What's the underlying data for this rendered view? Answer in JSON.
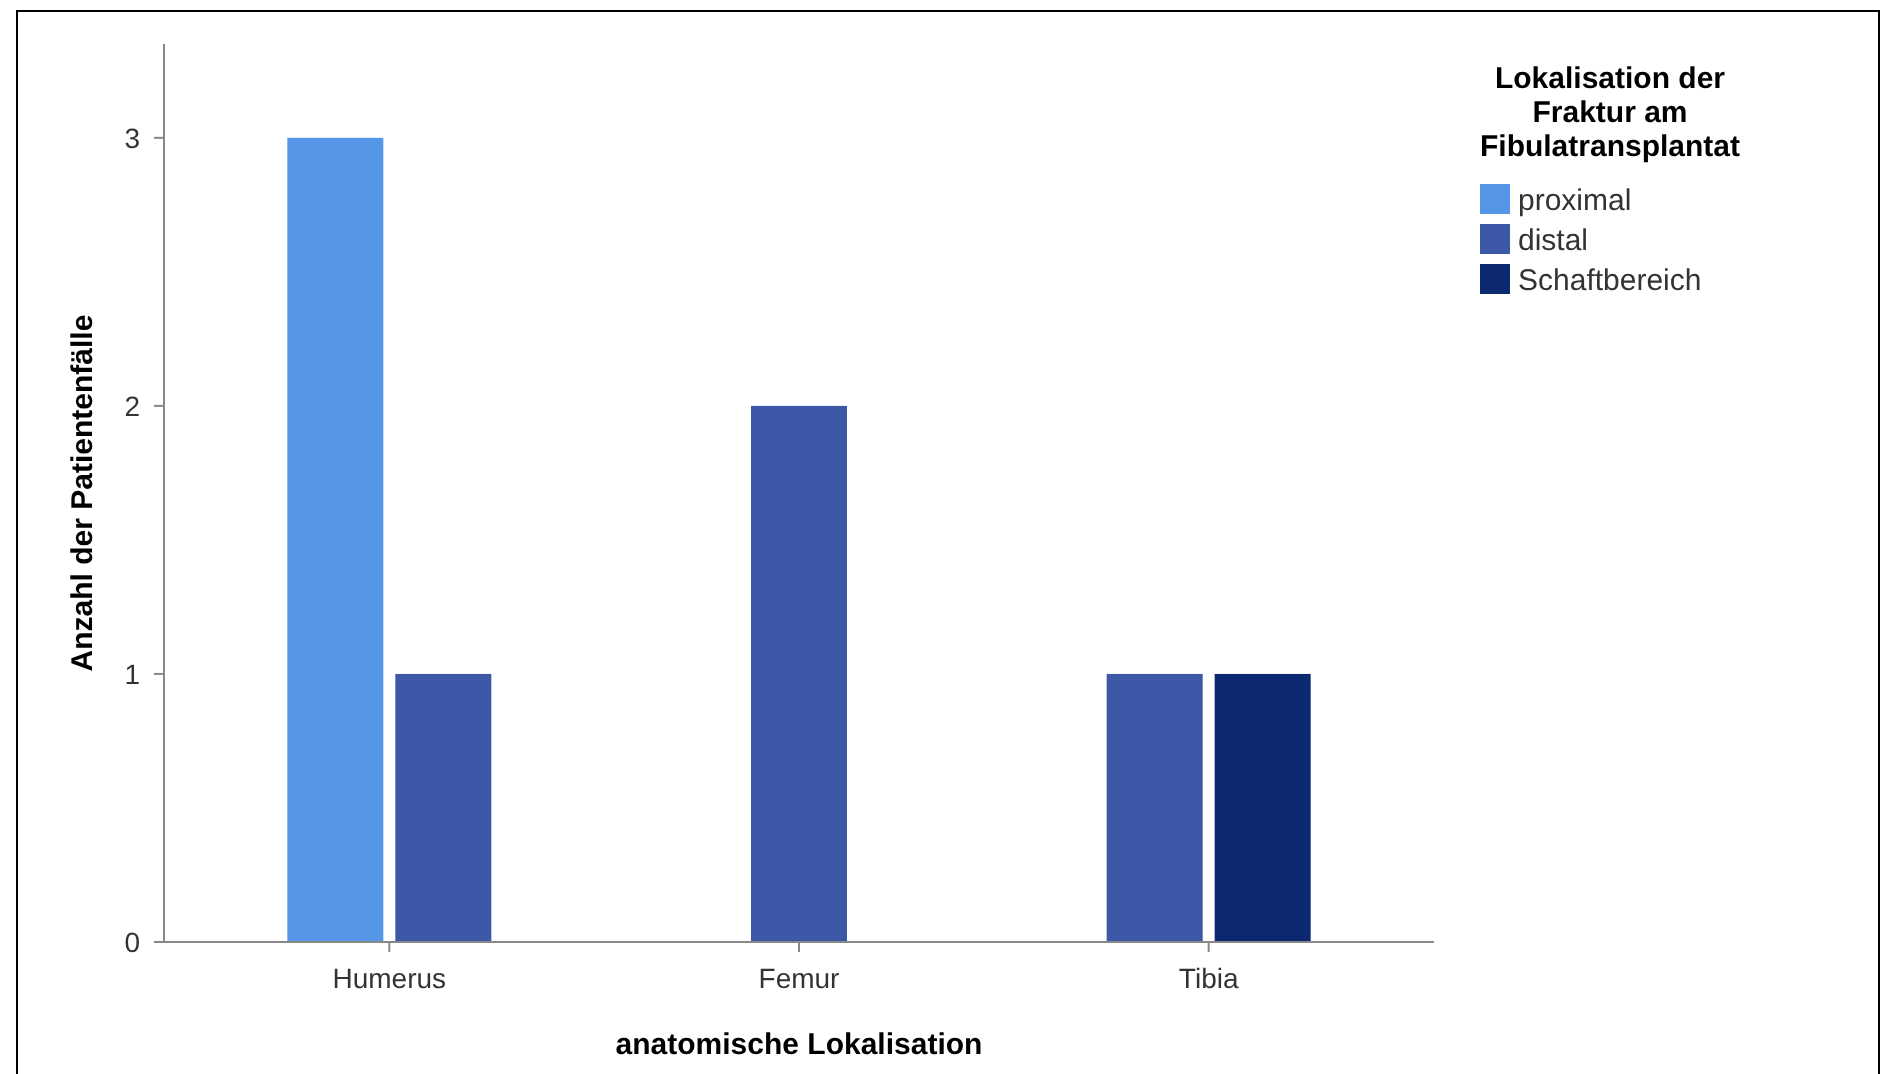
{
  "chart_data": {
    "type": "bar",
    "xlabel": "anatomische Lokalisation",
    "ylabel": "Anzahl der Patientenfälle",
    "legend_title": "Lokalisation der Fraktur am Fibulatransplantat",
    "categories": [
      "Humerus",
      "Femur",
      "Tibia"
    ],
    "series": [
      {
        "name": "proximal",
        "color": "#5596e6",
        "values": [
          3,
          null,
          null
        ]
      },
      {
        "name": "distal",
        "color": "#3e58a8",
        "values": [
          1,
          2,
          1
        ]
      },
      {
        "name": "Schaftbereich",
        "color": "#0b2870",
        "values": [
          null,
          null,
          1
        ]
      }
    ],
    "ylim": [
      0,
      3.35
    ],
    "yticks": [
      0,
      1,
      2,
      3
    ],
    "grid": false,
    "legend": "top right"
  }
}
